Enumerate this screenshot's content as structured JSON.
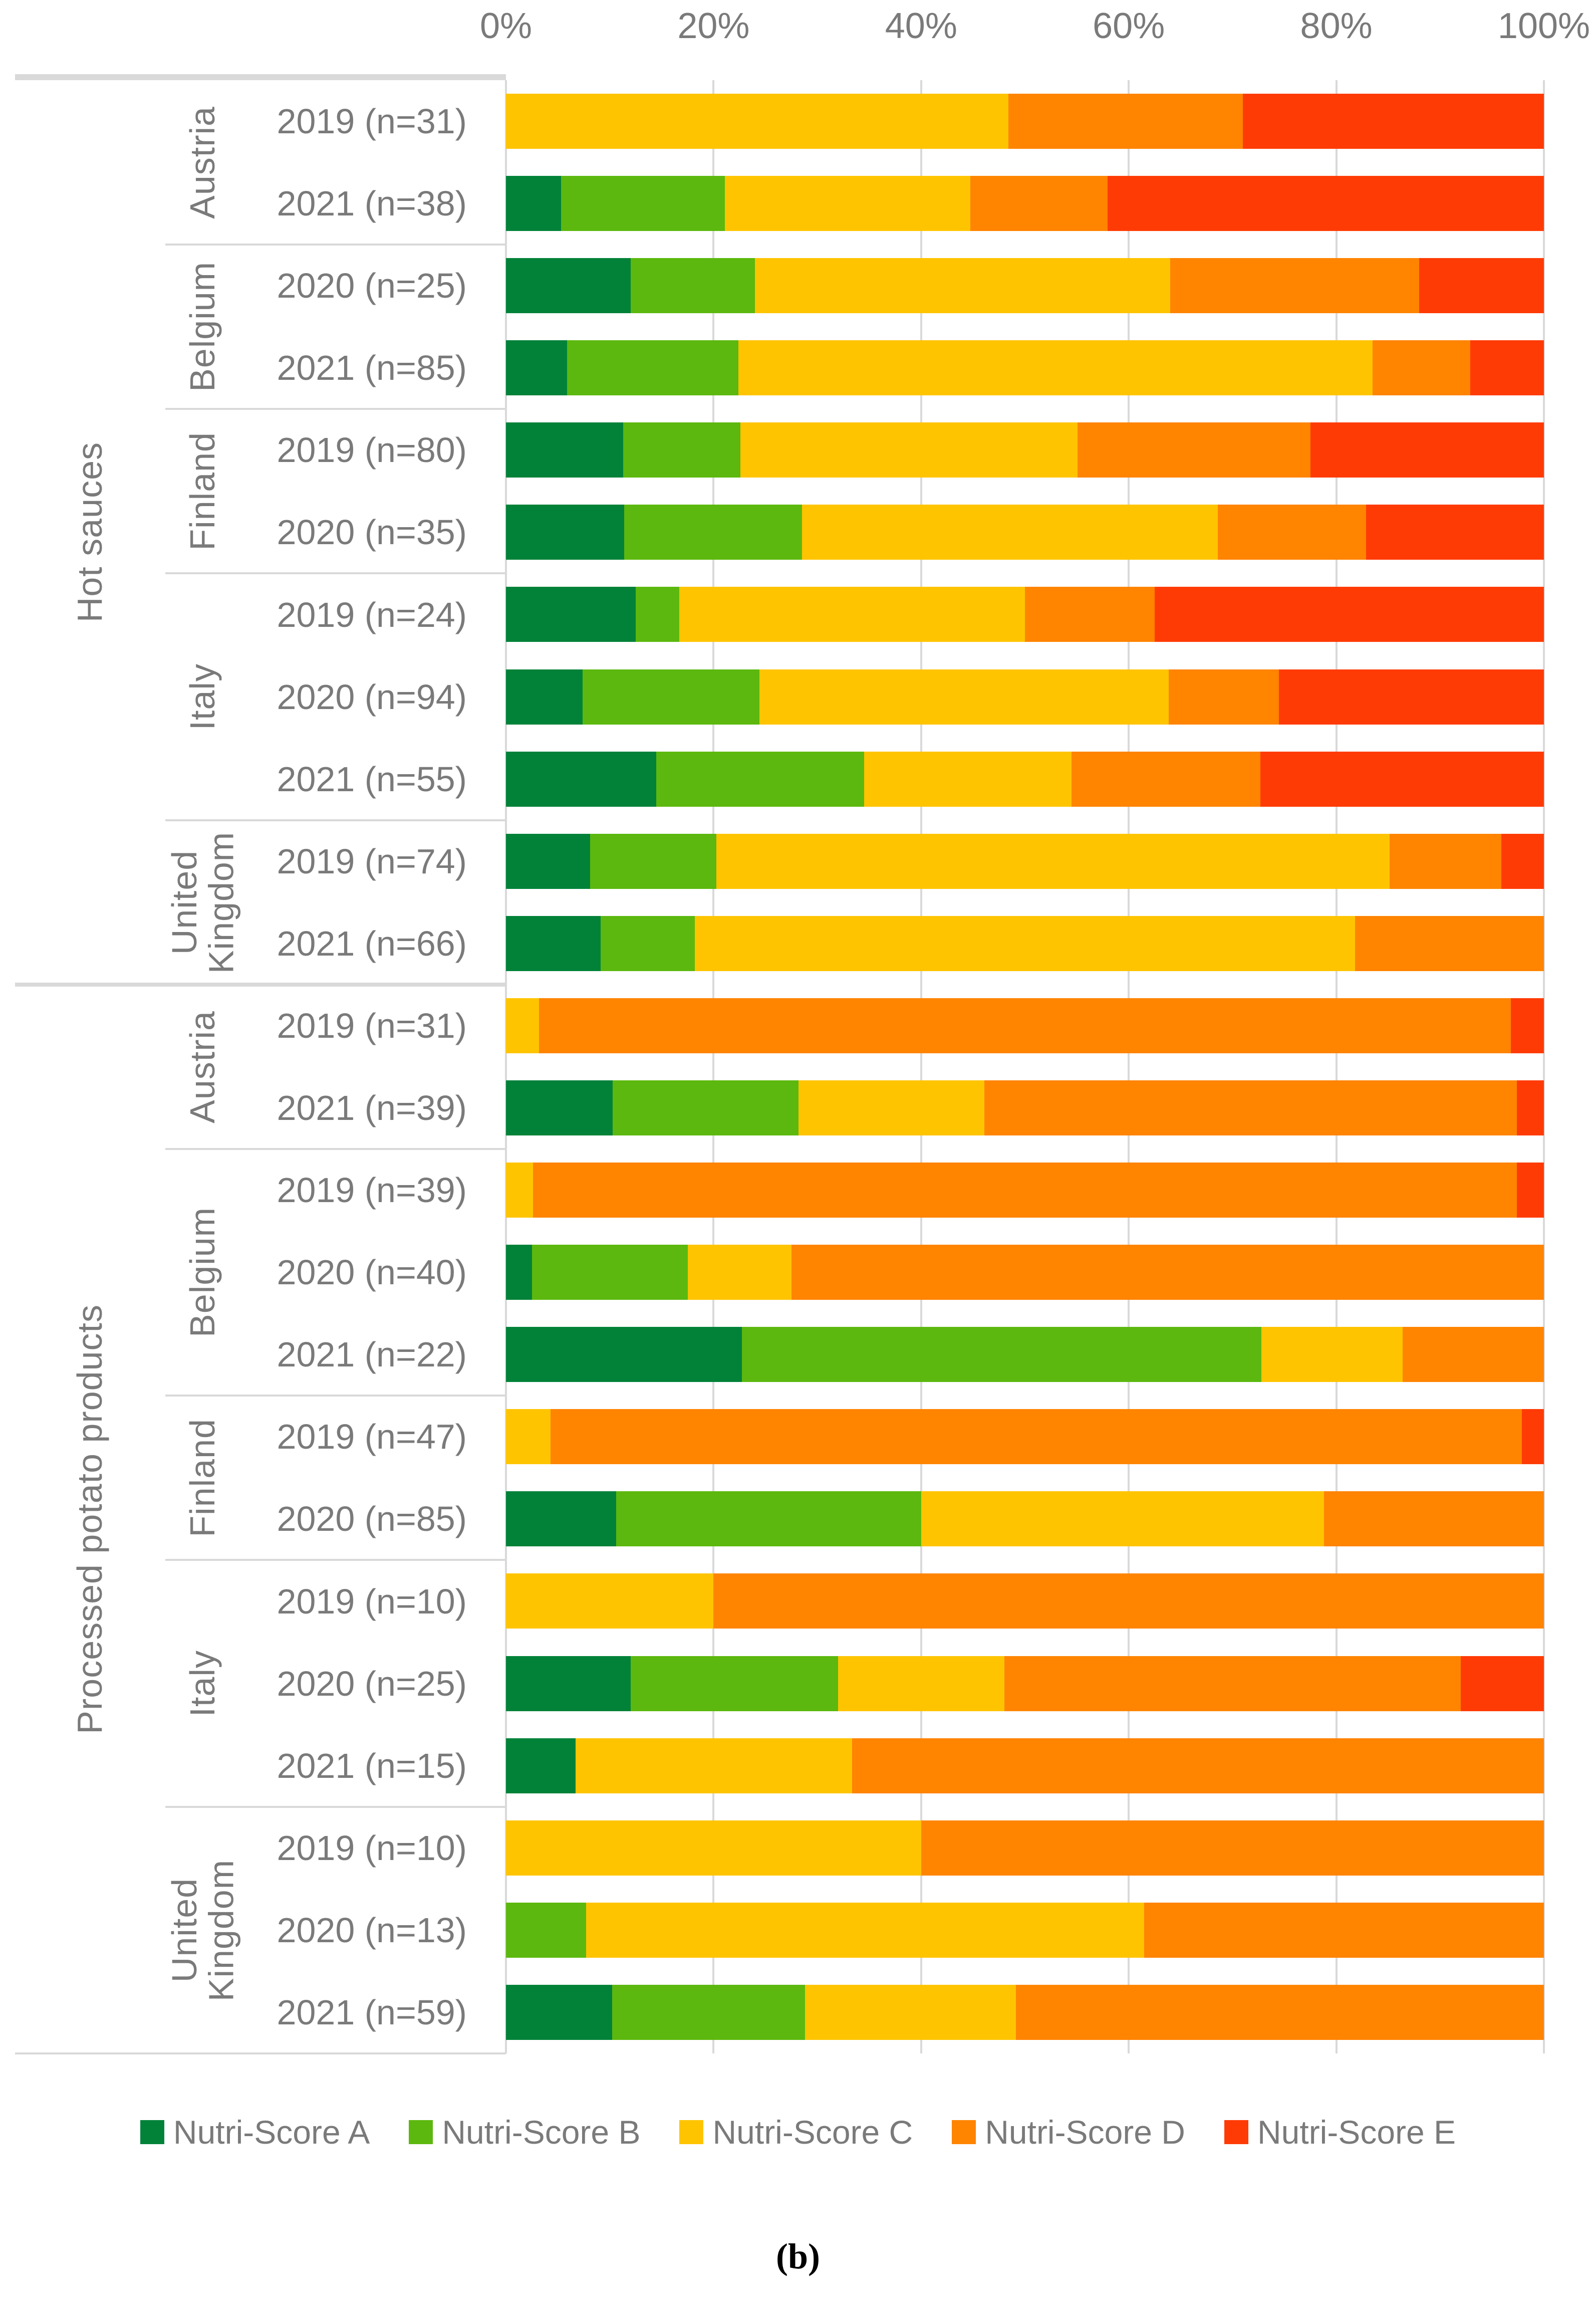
{
  "figure": {
    "caption": "(b)",
    "legend": [
      {
        "label": "Nutri-Score A",
        "color": "#028239"
      },
      {
        "label": "Nutri-Score B",
        "color": "#5CB80E"
      },
      {
        "label": "Nutri-Score C",
        "color": "#FFC400"
      },
      {
        "label": "Nutri-Score D",
        "color": "#FF8400"
      },
      {
        "label": "Nutri-Score E",
        "color": "#FF3B05"
      }
    ],
    "colors": {
      "gridline": "#d9d9d9",
      "text": "#7a7a7a",
      "separator": "#d9d9d9"
    }
  },
  "chart_data": {
    "type": "bar",
    "orientation": "horizontal",
    "stacked": true,
    "unit": "percent of products",
    "x_axis": {
      "ticks": [
        "0%",
        "20%",
        "40%",
        "60%",
        "80%",
        "100%"
      ],
      "range": [
        0,
        100
      ],
      "grid": true
    },
    "legend_position": "bottom",
    "series_names": [
      "Nutri-Score A",
      "Nutri-Score B",
      "Nutri-Score C",
      "Nutri-Score D",
      "Nutri-Score E"
    ],
    "groups": [
      {
        "category": "Hot sauces",
        "countries": [
          {
            "country": "Austria",
            "rows": [
              {
                "label": "2019 (n=31)",
                "values": [
                  0,
                  0,
                  48.4,
                  22.6,
                  29.0
                ]
              },
              {
                "label": "2021 (n=38)",
                "values": [
                  5.3,
                  15.8,
                  23.7,
                  13.2,
                  42.1
                ]
              }
            ]
          },
          {
            "country": "Belgium",
            "rows": [
              {
                "label": "2020 (n=25)",
                "values": [
                  12.0,
                  12.0,
                  40.0,
                  24.0,
                  12.0
                ]
              },
              {
                "label": "2021 (n=85)",
                "values": [
                  5.9,
                  16.5,
                  61.2,
                  9.4,
                  7.1
                ]
              }
            ]
          },
          {
            "country": "Finland",
            "rows": [
              {
                "label": "2019 (n=80)",
                "values": [
                  11.3,
                  11.3,
                  32.5,
                  22.5,
                  22.5
                ]
              },
              {
                "label": "2020 (n=35)",
                "values": [
                  11.4,
                  17.1,
                  40.0,
                  14.3,
                  17.1
                ]
              }
            ]
          },
          {
            "country": "Italy",
            "rows": [
              {
                "label": "2019 (n=24)",
                "values": [
                  12.5,
                  4.2,
                  33.3,
                  12.5,
                  37.5
                ]
              },
              {
                "label": "2020 (n=94)",
                "values": [
                  7.4,
                  17.0,
                  39.4,
                  10.6,
                  25.5
                ]
              },
              {
                "label": "2021 (n=55)",
                "values": [
                  14.5,
                  20.0,
                  20.0,
                  18.2,
                  27.3
                ]
              }
            ]
          },
          {
            "country": "United Kingdom",
            "rows": [
              {
                "label": "2019 (n=74)",
                "values": [
                  8.1,
                  12.2,
                  64.9,
                  10.8,
                  4.1
                ]
              },
              {
                "label": "2021 (n=66)",
                "values": [
                  9.1,
                  9.1,
                  63.6,
                  18.2,
                  0
                ]
              }
            ]
          }
        ]
      },
      {
        "category": "Processed potato products",
        "countries": [
          {
            "country": "Austria",
            "rows": [
              {
                "label": "2019 (n=31)",
                "values": [
                  0,
                  0,
                  3.2,
                  93.5,
                  3.2
                ]
              },
              {
                "label": "2021 (n=39)",
                "values": [
                  10.3,
                  17.9,
                  17.9,
                  51.3,
                  2.6
                ]
              }
            ]
          },
          {
            "country": "Belgium",
            "rows": [
              {
                "label": "2019 (n=39)",
                "values": [
                  0,
                  0,
                  2.6,
                  94.9,
                  2.6
                ]
              },
              {
                "label": "2020 (n=40)",
                "values": [
                  2.5,
                  15.0,
                  10.0,
                  72.5,
                  0
                ]
              },
              {
                "label": "2021 (n=22)",
                "values": [
                  22.7,
                  50.0,
                  13.6,
                  13.6,
                  0
                ]
              }
            ]
          },
          {
            "country": "Finland",
            "rows": [
              {
                "label": "2019 (n=47)",
                "values": [
                  0,
                  0,
                  4.3,
                  93.6,
                  2.1
                ]
              },
              {
                "label": "2020 (n=85)",
                "values": [
                  10.6,
                  29.4,
                  38.8,
                  21.2,
                  0
                ]
              }
            ]
          },
          {
            "country": "Italy",
            "rows": [
              {
                "label": "2019 (n=10)",
                "values": [
                  0,
                  0,
                  20.0,
                  80.0,
                  0
                ]
              },
              {
                "label": "2020 (n=25)",
                "values": [
                  12.0,
                  20.0,
                  16.0,
                  44.0,
                  8.0
                ]
              },
              {
                "label": "2021 (n=15)",
                "values": [
                  6.7,
                  0,
                  26.7,
                  66.7,
                  0
                ]
              }
            ]
          },
          {
            "country": "United Kingdom",
            "rows": [
              {
                "label": "2019 (n=10)",
                "values": [
                  0,
                  0,
                  40.0,
                  60.0,
                  0
                ]
              },
              {
                "label": "2020 (n=13)",
                "values": [
                  0,
                  7.7,
                  53.8,
                  38.5,
                  0
                ]
              },
              {
                "label": "2021 (n=59)",
                "values": [
                  10.2,
                  18.6,
                  20.3,
                  50.8,
                  0
                ]
              }
            ]
          }
        ]
      }
    ]
  }
}
